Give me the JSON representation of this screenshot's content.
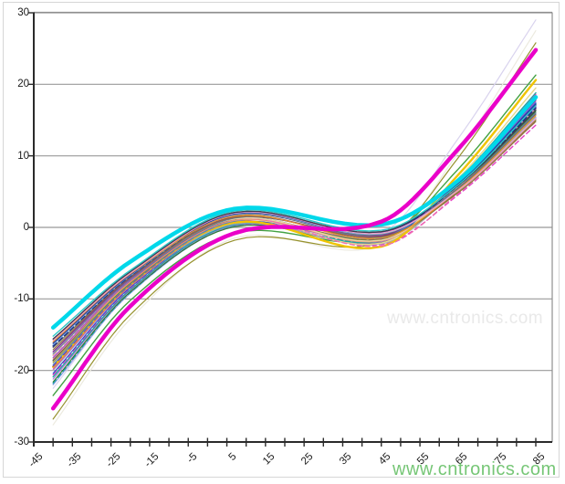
{
  "watermarks": {
    "center_text": "www.cntronics.com",
    "bottom_right_text": "www.cntronics.com"
  },
  "colors": {
    "watermark_green": "#54b854",
    "watermark_faint": "#e9e9e9",
    "grid": "#999999",
    "axis": "#2b2b2b",
    "plot_border": "#8f8f8f",
    "outer_border": "#d6d6d6",
    "background": "#ffffff"
  },
  "chart_data": {
    "type": "line",
    "title": "",
    "xlabel": "",
    "ylabel": "",
    "xlim": [
      -45,
      90
    ],
    "ylim": [
      -30,
      30
    ],
    "grid": "horizontal",
    "legend": "none",
    "x_tick_values": [
      -45,
      -35,
      -25,
      -15,
      -5,
      5,
      15,
      25,
      35,
      45,
      55,
      65,
      75,
      85
    ],
    "x_tick_labels": [
      "-45",
      "-35",
      "-25",
      "-15",
      "-5",
      "5",
      "15",
      "25",
      "35",
      "45",
      "55",
      "65",
      "75",
      "85"
    ],
    "x_minor_tick_step": 5,
    "y_tick_values": [
      30,
      20,
      10,
      0,
      -10,
      -20,
      -30
    ],
    "y_tick_labels": [
      "30",
      "20",
      "10",
      "0",
      "-10",
      "-20",
      "-30"
    ],
    "anchor_x": [
      -40,
      -20,
      7,
      45,
      65,
      85
    ],
    "series_note": "Family of cubic temperature-error curves; each series passes smoothly through its anchor y-values at anchor_x temperatures. JSON order = draw order (bottom to top).",
    "series": [
      {
        "name": "ivory-faint",
        "color": "#eceadf",
        "width": 1.2,
        "dashed": false,
        "anchors": [
          -27.6,
          -12.8,
          -1.5,
          -2.5,
          10.5,
          27.5
        ]
      },
      {
        "name": "lavender-faint",
        "color": "#d9d3ee",
        "width": 1.2,
        "dashed": false,
        "anchors": [
          -22.5,
          -9.0,
          0.3,
          -0.8,
          12.5,
          29.0
        ]
      },
      {
        "name": "olive-thin",
        "color": "#97922e",
        "width": 1.2,
        "dashed": false,
        "anchors": [
          -26.8,
          -12.2,
          -1.8,
          -2.0,
          9.8,
          25.8
        ]
      },
      {
        "name": "green",
        "color": "#44a244",
        "width": 1.4,
        "dashed": false,
        "anchors": [
          -23.5,
          -10.2,
          -0.8,
          -1.6,
          8.2,
          21.3
        ]
      },
      {
        "name": "periwinkle",
        "color": "#8e9ce2",
        "width": 1.2,
        "dashed": false,
        "anchors": [
          -22.0,
          -9.2,
          0.2,
          -1.4,
          5.9,
          16.8
        ]
      },
      {
        "name": "teal-dashed",
        "color": "#23a3b5",
        "width": 1.4,
        "dashed": true,
        "anchors": [
          -21.8,
          -9.1,
          0.2,
          -1.8,
          6.1,
          17.3
        ]
      },
      {
        "name": "dark-green",
        "color": "#2f7d33",
        "width": 1.2,
        "dashed": false,
        "anchors": [
          -21.6,
          -9.0,
          0.1,
          -2.1,
          5.6,
          16.2
        ]
      },
      {
        "name": "orchid",
        "color": "#b273d6",
        "width": 1.2,
        "dashed": false,
        "anchors": [
          -21.2,
          -8.8,
          0.3,
          -2.0,
          6.1,
          17.6
        ]
      },
      {
        "name": "teal",
        "color": "#1ea6a0",
        "width": 1.4,
        "dashed": false,
        "anchors": [
          -20.9,
          -8.7,
          0.4,
          -1.9,
          6.7,
          18.8
        ]
      },
      {
        "name": "magenta-dashed",
        "color": "#e43ec4",
        "width": 1.4,
        "dashed": true,
        "anchors": [
          -20.6,
          -8.5,
          0.6,
          -2.4,
          4.6,
          14.3
        ]
      },
      {
        "name": "medium-blue",
        "color": "#3059c9",
        "width": 1.2,
        "dashed": false,
        "anchors": [
          -20.4,
          -8.4,
          0.6,
          -1.6,
          6.1,
          17.4
        ]
      },
      {
        "name": "light-gray",
        "color": "#a8a8b2",
        "width": 1.2,
        "dashed": false,
        "anchors": [
          -20.0,
          -8.2,
          0.5,
          -2.3,
          5.4,
          15.9
        ]
      },
      {
        "name": "magenta2",
        "color": "#cf43ba",
        "width": 1.2,
        "dashed": false,
        "anchors": [
          -19.8,
          -8.2,
          0.8,
          -1.3,
          6.5,
          18.6
        ]
      },
      {
        "name": "yellow",
        "color": "#f0c400",
        "width": 2.4,
        "dashed": false,
        "anchors": [
          -19.5,
          -8.0,
          0.7,
          -2.7,
          7.4,
          20.6
        ]
      },
      {
        "name": "purple-dashed",
        "color": "#7a3fae",
        "width": 1.4,
        "dashed": true,
        "anchors": [
          -19.4,
          -8.0,
          0.9,
          -1.6,
          5.2,
          15.2
        ]
      },
      {
        "name": "steel-blue",
        "color": "#4f86c6",
        "width": 1.2,
        "dashed": false,
        "anchors": [
          -19.2,
          -7.9,
          0.9,
          -1.4,
          6.4,
          18.2
        ]
      },
      {
        "name": "olive2",
        "color": "#85852d",
        "width": 1.2,
        "dashed": false,
        "anchors": [
          -18.9,
          -7.8,
          1.1,
          -1.7,
          5.1,
          15.0
        ]
      },
      {
        "name": "khaki",
        "color": "#e6d98c",
        "width": 1.4,
        "dashed": false,
        "anchors": [
          -18.7,
          -7.6,
          1.0,
          -2.2,
          6.9,
          19.5
        ]
      },
      {
        "name": "charcoal",
        "color": "#4a4e55",
        "width": 1.4,
        "dashed": false,
        "anchors": [
          -18.6,
          -7.5,
          1.2,
          -0.9,
          6.0,
          17.0
        ]
      },
      {
        "name": "salmon",
        "color": "#e58a78",
        "width": 1.2,
        "dashed": false,
        "anchors": [
          -18.4,
          -7.6,
          1.0,
          -1.9,
          5.7,
          16.6
        ]
      },
      {
        "name": "violet",
        "color": "#9a55cf",
        "width": 1.2,
        "dashed": false,
        "anchors": [
          -18.2,
          -7.4,
          1.3,
          -1.1,
          5.9,
          16.9
        ]
      },
      {
        "name": "pink-dashed",
        "color": "#ef6fb2",
        "width": 1.4,
        "dashed": true,
        "anchors": [
          -17.9,
          -7.3,
          1.2,
          -2.6,
          4.8,
          14.8
        ]
      },
      {
        "name": "cream",
        "color": "#ead9a8",
        "width": 1.4,
        "dashed": false,
        "anchors": [
          -17.8,
          -7.2,
          1.2,
          -1.8,
          5.8,
          16.5
        ]
      },
      {
        "name": "slate",
        "color": "#6b7a9c",
        "width": 1.2,
        "dashed": false,
        "anchors": [
          -17.7,
          -7.3,
          1.3,
          -1.0,
          5.6,
          16.0
        ]
      },
      {
        "name": "purple",
        "color": "#7c2f92",
        "width": 1.4,
        "dashed": false,
        "anchors": [
          -17.4,
          -7.1,
          1.5,
          -1.2,
          6.3,
          17.8
        ]
      },
      {
        "name": "brown",
        "color": "#8f6e3c",
        "width": 1.2,
        "dashed": false,
        "anchors": [
          -17.1,
          -7.0,
          1.4,
          -1.3,
          4.9,
          14.8
        ]
      },
      {
        "name": "dim-gray",
        "color": "#6e6e6e",
        "width": 1.2,
        "dashed": false,
        "anchors": [
          -16.8,
          -6.9,
          1.7,
          -1.0,
          5.5,
          15.8
        ]
      },
      {
        "name": "navy-dashed",
        "color": "#1c2b86",
        "width": 1.6,
        "dashed": true,
        "anchors": [
          -16.6,
          -6.8,
          1.8,
          -0.8,
          5.9,
          16.7
        ]
      },
      {
        "name": "sky-blue",
        "color": "#7fb4e4",
        "width": 1.2,
        "dashed": false,
        "anchors": [
          -16.4,
          -6.7,
          1.8,
          -0.9,
          5.3,
          15.4
        ]
      },
      {
        "name": "navy",
        "color": "#2b3a9b",
        "width": 1.4,
        "dashed": false,
        "anchors": [
          -16.2,
          -6.6,
          1.9,
          -0.7,
          6.1,
          17.2
        ]
      },
      {
        "name": "orange",
        "color": "#e8962b",
        "width": 1.2,
        "dashed": false,
        "anchors": [
          -16.0,
          -6.5,
          1.6,
          -1.5,
          5.3,
          15.6
        ]
      },
      {
        "name": "pink",
        "color": "#f0a0c8",
        "width": 1.4,
        "dashed": false,
        "anchors": [
          -15.8,
          -6.4,
          2.0,
          -0.8,
          5.2,
          15.2
        ]
      },
      {
        "name": "dark-slate",
        "color": "#3c3c4e",
        "width": 1.4,
        "dashed": false,
        "anchors": [
          -15.6,
          -6.2,
          2.1,
          -0.6,
          5.9,
          16.4
        ]
      },
      {
        "name": "turquoise",
        "color": "#2cc8c8",
        "width": 1.4,
        "dashed": false,
        "anchors": [
          -15.2,
          -6.0,
          2.3,
          -0.4,
          6.0,
          17.0
        ]
      },
      {
        "name": "cyan-thick",
        "color": "#00d8ea",
        "width": 4.5,
        "dashed": false,
        "anchors": [
          -14.0,
          -4.8,
          2.6,
          0.4,
          6.6,
          18.2
        ]
      },
      {
        "name": "magenta-thick",
        "color": "#ea00c8",
        "width": 4.5,
        "dashed": false,
        "anchors": [
          -25.3,
          -11.0,
          -0.8,
          0.8,
          11.0,
          24.8
        ]
      }
    ]
  }
}
